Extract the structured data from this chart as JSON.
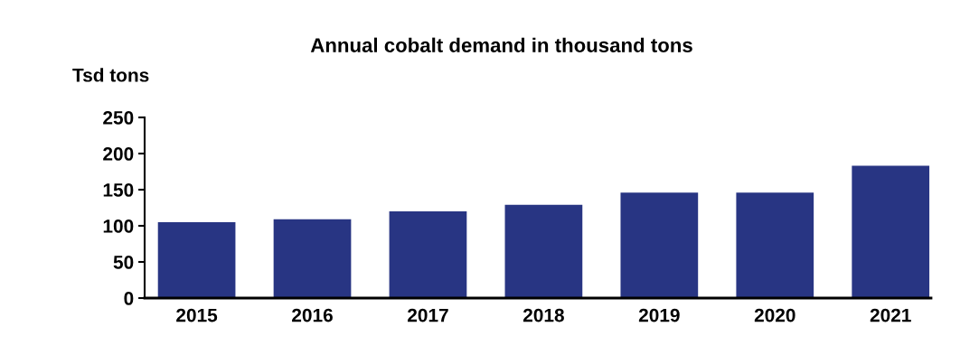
{
  "chart_data": {
    "type": "bar",
    "title": "Annual cobalt demand in thousand tons",
    "ylabel": "Tsd tons",
    "categories": [
      "2015",
      "2016",
      "2017",
      "2018",
      "2019",
      "2020",
      "2021"
    ],
    "values": [
      105,
      109,
      120,
      129,
      146,
      146,
      183
    ],
    "color": "#283583",
    "ylim": [
      0,
      250
    ],
    "yticks": [
      0,
      50,
      100,
      150,
      200,
      250
    ],
    "grid": false,
    "legend": false
  }
}
